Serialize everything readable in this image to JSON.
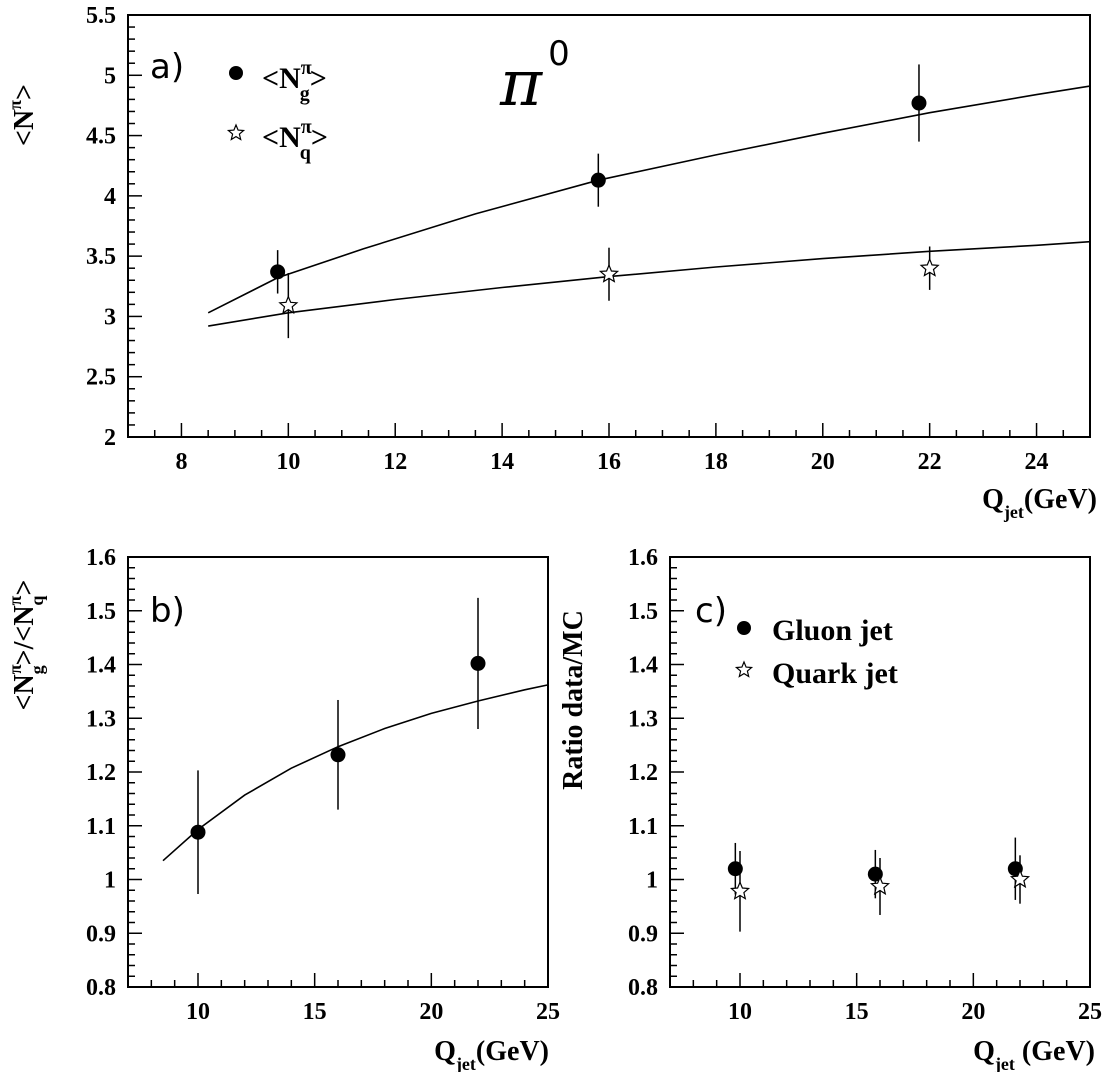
{
  "chart_data": [
    {
      "type": "scatter",
      "panel_label": "a)",
      "annotation": "π",
      "annotation_sup": "0",
      "xlabel": "Q",
      "xlabel_sub": "jet",
      "xlabel_unit": "(GeV)",
      "ylabel": "<N",
      "ylabel_sup": "π",
      "ylabel_end": ">",
      "xlim": [
        7,
        25
      ],
      "ylim": [
        2,
        5.5
      ],
      "xticks": [
        "8",
        "10",
        "12",
        "14",
        "16",
        "18",
        "20",
        "22",
        "24"
      ],
      "yticks": [
        "2",
        "2.5",
        "3",
        "3.5",
        "4",
        "4.5",
        "5",
        "5.5"
      ],
      "legend_position": "top-left",
      "series": [
        {
          "name": "<N",
          "name_sup": "π",
          "name_sub": "g",
          "name_end": ">",
          "marker": "dot",
          "points": [
            {
              "x": 9.8,
              "y": 3.37,
              "err": 0.18
            },
            {
              "x": 15.8,
              "y": 4.13,
              "err": 0.22
            },
            {
              "x": 21.8,
              "y": 4.77,
              "err": 0.32
            }
          ]
        },
        {
          "name": "<N",
          "name_sup": "π",
          "name_sub": "q",
          "name_end": ">",
          "marker": "star",
          "points": [
            {
              "x": 10.0,
              "y": 3.09,
              "err": 0.27
            },
            {
              "x": 16.0,
              "y": 3.35,
              "err": 0.22
            },
            {
              "x": 22.0,
              "y": 3.4,
              "err": 0.18
            }
          ]
        }
      ],
      "curves": [
        {
          "x": [
            8.5,
            9.8,
            11.4,
            13.5,
            15.8,
            18,
            20,
            22,
            24,
            25
          ],
          "y": [
            3.03,
            3.32,
            3.56,
            3.85,
            4.13,
            4.34,
            4.52,
            4.69,
            4.84,
            4.91
          ]
        },
        {
          "x": [
            8.5,
            10,
            12,
            14,
            16,
            18,
            20,
            22,
            24,
            25
          ],
          "y": [
            2.92,
            3.03,
            3.14,
            3.24,
            3.33,
            3.41,
            3.48,
            3.54,
            3.59,
            3.62
          ]
        }
      ]
    },
    {
      "type": "scatter",
      "panel_label": "b)",
      "xlabel": "Q",
      "xlabel_sub": "jet",
      "xlabel_unit": "(GeV)",
      "ylabel": "<N",
      "ylabel_sup": "π",
      "ylabel_sub": "g",
      "ylabel_mid": ">/<N",
      "ylabel_sup2": "π",
      "ylabel_sub2": "q",
      "ylabel_end": ">",
      "xlim": [
        7,
        25
      ],
      "ylim": [
        0.8,
        1.6
      ],
      "xticks": [
        "10",
        "15",
        "20",
        "25"
      ],
      "yticks": [
        "0.8",
        "0.9",
        "1",
        "1.1",
        "1.2",
        "1.3",
        "1.4",
        "1.5",
        "1.6"
      ],
      "series": [
        {
          "marker": "dot",
          "points": [
            {
              "x": 10,
              "y": 1.088,
              "err": 0.115
            },
            {
              "x": 16,
              "y": 1.232,
              "err": 0.102
            },
            {
              "x": 22,
              "y": 1.402,
              "err": 0.122
            }
          ]
        }
      ],
      "curves": [
        {
          "x": [
            8.5,
            10,
            12,
            14,
            16,
            18,
            20,
            22,
            24,
            25
          ],
          "y": [
            1.035,
            1.093,
            1.157,
            1.207,
            1.247,
            1.281,
            1.309,
            1.332,
            1.353,
            1.362
          ]
        }
      ]
    },
    {
      "type": "scatter",
      "panel_label": "c)",
      "xlabel": "Q",
      "xlabel_sub": "jet",
      "xlabel_unit": " (GeV)",
      "ylabel": "Ratio data/MC",
      "xlim": [
        7,
        25
      ],
      "ylim": [
        0.8,
        1.6
      ],
      "xticks": [
        "10",
        "15",
        "20",
        "25"
      ],
      "yticks": [
        "0.8",
        "0.9",
        "1",
        "1.1",
        "1.2",
        "1.3",
        "1.4",
        "1.5",
        "1.6"
      ],
      "legend_position": "top-left",
      "series": [
        {
          "name": "Gluon jet",
          "marker": "dot",
          "points": [
            {
              "x": 9.8,
              "y": 1.02,
              "err": 0.048
            },
            {
              "x": 15.8,
              "y": 1.01,
              "err": 0.045
            },
            {
              "x": 21.8,
              "y": 1.02,
              "err": 0.058
            }
          ]
        },
        {
          "name": "Quark jet",
          "marker": "star",
          "points": [
            {
              "x": 10.0,
              "y": 0.978,
              "err": 0.075
            },
            {
              "x": 16.0,
              "y": 0.987,
              "err": 0.053
            },
            {
              "x": 22.0,
              "y": 1.0,
              "err": 0.045
            }
          ]
        }
      ]
    }
  ]
}
